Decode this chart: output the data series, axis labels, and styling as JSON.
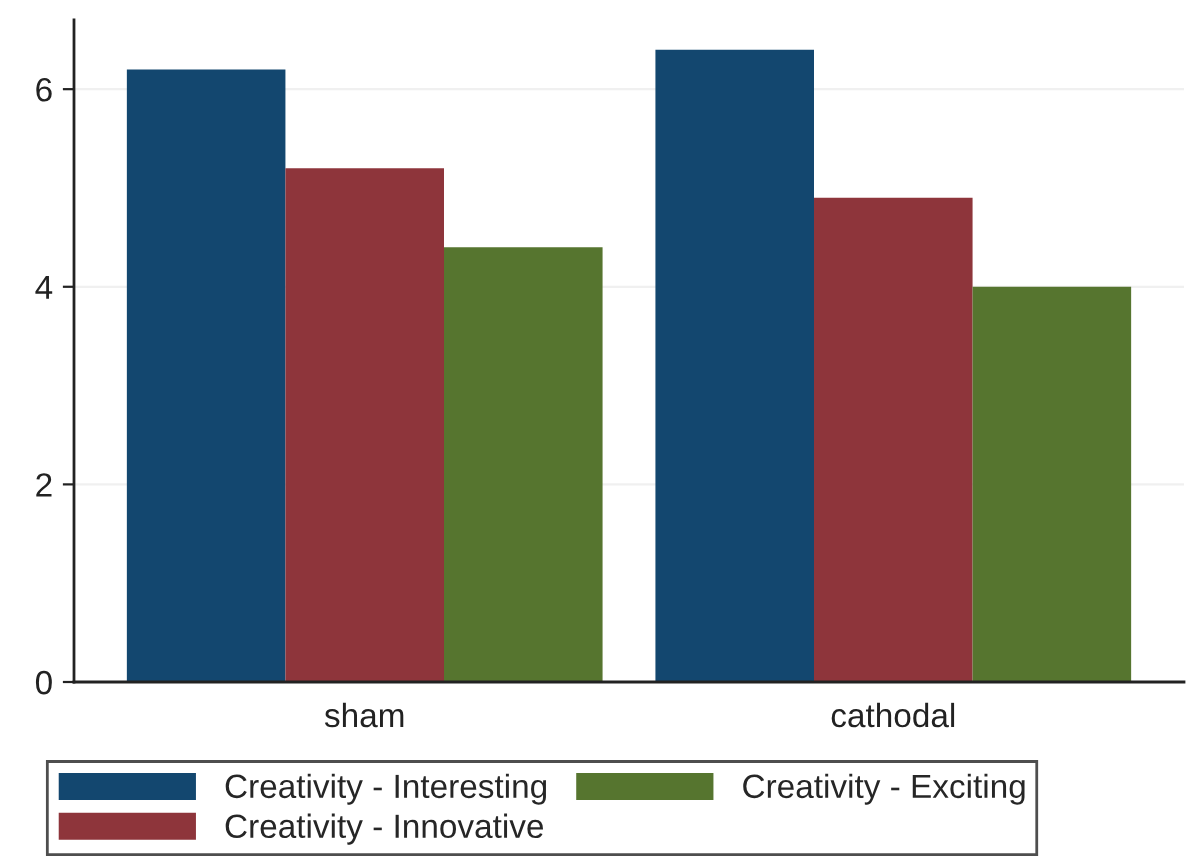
{
  "chart_data": {
    "type": "bar",
    "categories": [
      "sham",
      "cathodal"
    ],
    "series": [
      {
        "name": "Creativity - Interesting",
        "color": "#13476f",
        "values": [
          6.2,
          6.4
        ]
      },
      {
        "name": "Creativity - Innovative",
        "color": "#8e353b",
        "values": [
          5.2,
          4.9
        ]
      },
      {
        "name": "Creativity - Exciting",
        "color": "#56752f",
        "values": [
          4.4,
          4.0
        ]
      }
    ],
    "ylim": [
      0,
      6.7
    ],
    "yticks": [
      0,
      2,
      4,
      6
    ],
    "grid": "y",
    "legend": "bottom"
  }
}
